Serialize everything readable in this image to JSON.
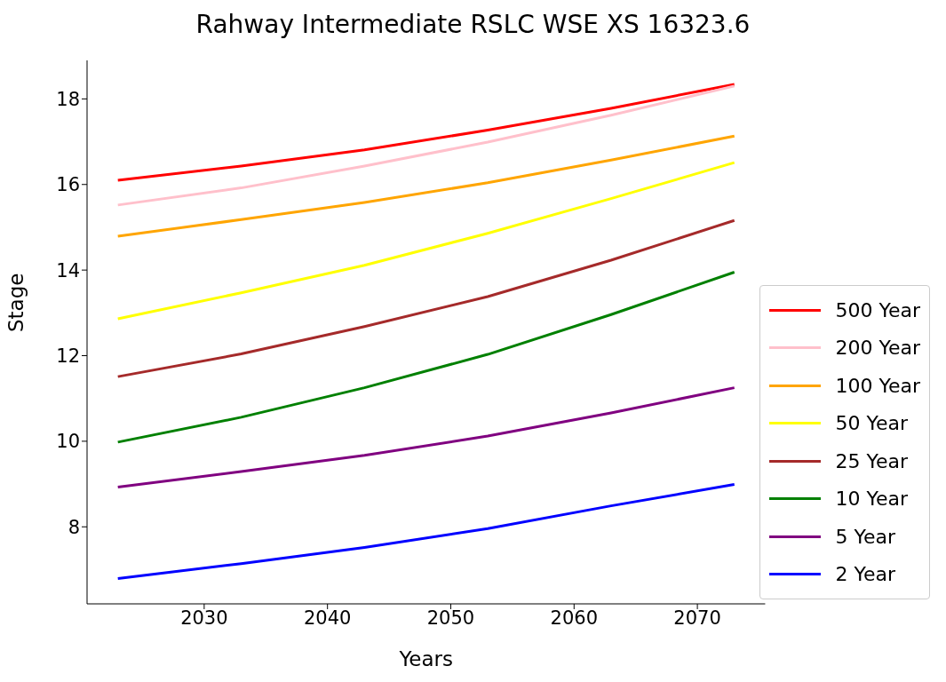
{
  "chart_data": {
    "type": "line",
    "title": "Rahway Intermediate RSLC WSE XS 16323.6",
    "xlabel": "Years",
    "ylabel": "Stage",
    "x": [
      2023,
      2033,
      2043,
      2053,
      2063,
      2073
    ],
    "series": [
      {
        "name": "500 Year",
        "color": "#ff0000",
        "values": [
          16.1,
          16.43,
          16.81,
          17.27,
          17.78,
          18.34
        ]
      },
      {
        "name": "200 Year",
        "color": "#ffc0cb",
        "values": [
          15.52,
          15.92,
          16.43,
          16.99,
          17.62,
          18.3
        ]
      },
      {
        "name": "100 Year",
        "color": "#ffa500",
        "values": [
          14.79,
          15.18,
          15.58,
          16.04,
          16.57,
          17.13
        ]
      },
      {
        "name": "50 Year",
        "color": "#ffff00",
        "values": [
          12.86,
          13.47,
          14.11,
          14.86,
          15.67,
          16.51
        ]
      },
      {
        "name": "25 Year",
        "color": "#a52a2a",
        "values": [
          11.51,
          12.04,
          12.68,
          13.38,
          14.23,
          15.16
        ]
      },
      {
        "name": "10 Year",
        "color": "#008000",
        "values": [
          9.98,
          10.56,
          11.25,
          12.03,
          12.96,
          13.95
        ]
      },
      {
        "name": "5 Year",
        "color": "#800080",
        "values": [
          8.93,
          9.29,
          9.67,
          10.12,
          10.66,
          11.25
        ]
      },
      {
        "name": "2 Year",
        "color": "#0000ff",
        "values": [
          6.79,
          7.14,
          7.52,
          7.96,
          8.49,
          8.99
        ]
      }
    ],
    "xlim": [
      2020.5,
      2075.5
    ],
    "xticks": [
      2030,
      2040,
      2050,
      2060,
      2070
    ],
    "ylim": [
      6.2,
      18.9
    ],
    "yticks": [
      8,
      10,
      12,
      14,
      16,
      18
    ],
    "grid": false,
    "legend": "bottom right",
    "marker": "none",
    "line_style": "solid"
  }
}
